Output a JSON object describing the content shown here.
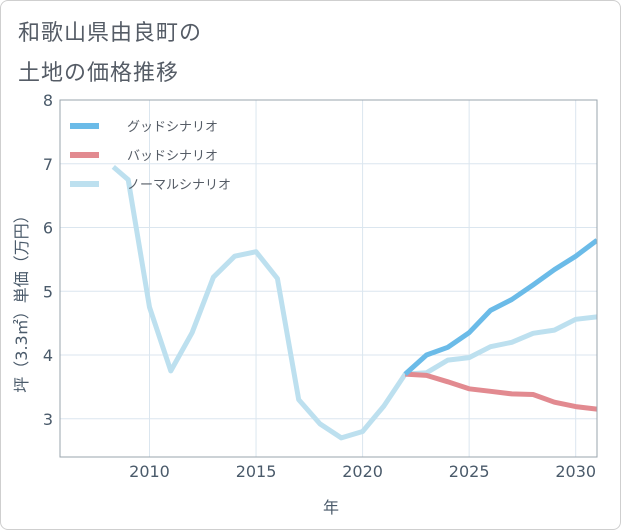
{
  "title": {
    "line1": "和歌山県由良町の",
    "line2": "土地の価格推移"
  },
  "chart_data": {
    "type": "line",
    "xlabel": "年",
    "ylabel": "坪（3.3㎡）単価（万円）",
    "xlim": [
      2005.8,
      2031
    ],
    "ylim": [
      2.4,
      8
    ],
    "x_ticks": [
      2010,
      2015,
      2020,
      2025,
      2030
    ],
    "y_ticks": [
      3,
      4,
      5,
      6,
      7,
      8
    ],
    "grid": true,
    "legend_position": "top-left",
    "series": [
      {
        "name": "グッドシナリオ",
        "color": "#6bbbe8",
        "points": [
          [
            2022,
            3.7
          ],
          [
            2023,
            4.0
          ],
          [
            2024,
            4.12
          ],
          [
            2025,
            4.35
          ],
          [
            2026,
            4.7
          ],
          [
            2027,
            4.87
          ],
          [
            2028,
            5.1
          ],
          [
            2029,
            5.34
          ],
          [
            2030,
            5.55
          ],
          [
            2031,
            5.8
          ]
        ]
      },
      {
        "name": "バッドシナリオ",
        "color": "#e28a90",
        "points": [
          [
            2022,
            3.7
          ],
          [
            2023,
            3.68
          ],
          [
            2024,
            3.58
          ],
          [
            2025,
            3.47
          ],
          [
            2026,
            3.43
          ],
          [
            2027,
            3.39
          ],
          [
            2028,
            3.38
          ],
          [
            2029,
            3.26
          ],
          [
            2030,
            3.19
          ],
          [
            2031,
            3.15
          ]
        ]
      },
      {
        "name": "ノーマルシナリオ",
        "color": "#bde0ef",
        "points": [
          [
            2008.3,
            6.95
          ],
          [
            2009,
            6.75
          ],
          [
            2010,
            4.75
          ],
          [
            2011,
            3.75
          ],
          [
            2012,
            4.35
          ],
          [
            2013,
            5.22
          ],
          [
            2014,
            5.55
          ],
          [
            2015,
            5.62
          ],
          [
            2016,
            5.2
          ],
          [
            2017,
            3.3
          ],
          [
            2018,
            2.92
          ],
          [
            2019,
            2.7
          ],
          [
            2020,
            2.8
          ],
          [
            2021,
            3.2
          ],
          [
            2022,
            3.7
          ],
          [
            2023,
            3.72
          ],
          [
            2024,
            3.92
          ],
          [
            2025,
            3.96
          ],
          [
            2026,
            4.13
          ],
          [
            2027,
            4.2
          ],
          [
            2028,
            4.34
          ],
          [
            2029,
            4.39
          ],
          [
            2030,
            4.56
          ],
          [
            2031,
            4.6
          ]
        ]
      }
    ]
  }
}
